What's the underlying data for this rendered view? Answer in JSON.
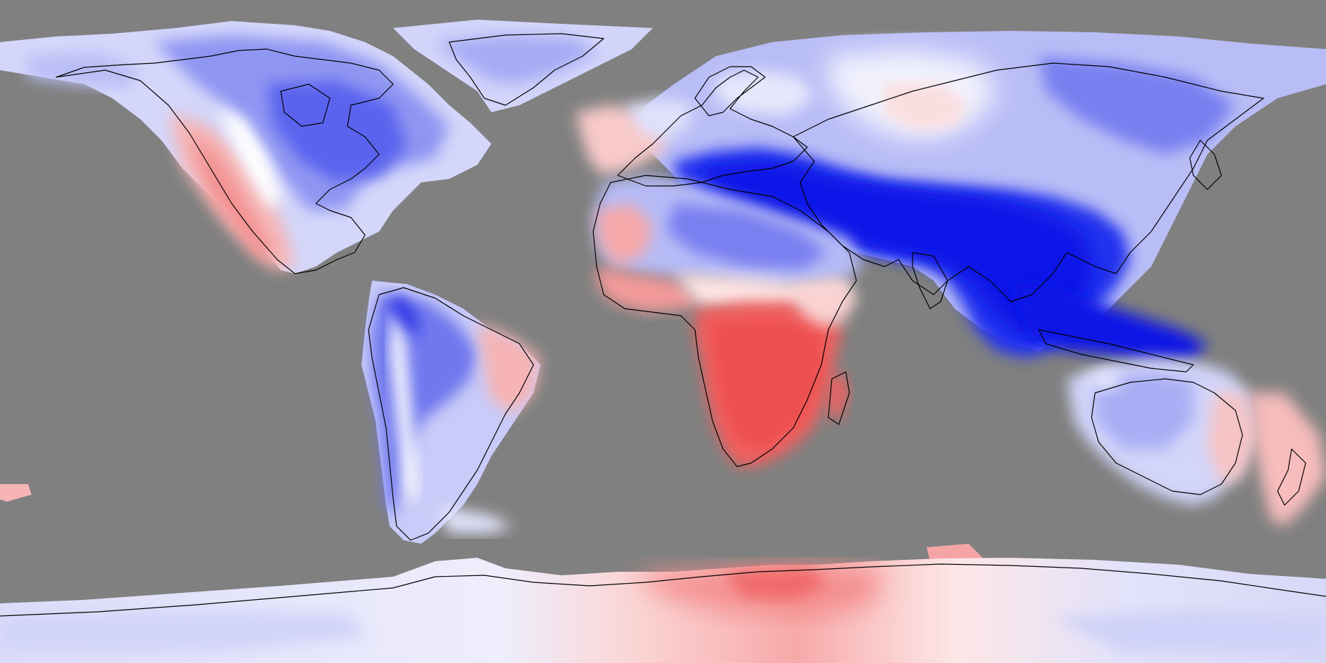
{
  "map": {
    "projection": "equirectangular",
    "ocean_color": "#808080",
    "coastline_color": "#000000",
    "color_scale": {
      "type": "diverging",
      "negative": "#0000e6",
      "neutral": "#ffffff",
      "positive": "#f03c3c"
    },
    "anomaly_regions": [
      {
        "name": "north-america",
        "polarity": "mixed"
      },
      {
        "name": "greenland",
        "polarity": "negative"
      },
      {
        "name": "south-america",
        "polarity": "negative"
      },
      {
        "name": "europe",
        "polarity": "mixed"
      },
      {
        "name": "north-africa",
        "polarity": "negative"
      },
      {
        "name": "southern-africa",
        "polarity": "positive"
      },
      {
        "name": "madagascar",
        "polarity": "positive"
      },
      {
        "name": "middle-east-south-asia",
        "polarity": "strong-negative"
      },
      {
        "name": "siberia",
        "polarity": "negative"
      },
      {
        "name": "southeast-asia-indonesia",
        "polarity": "strong-negative"
      },
      {
        "name": "australia",
        "polarity": "mixed"
      },
      {
        "name": "new-zealand",
        "polarity": "positive"
      },
      {
        "name": "antarctica",
        "polarity": "mixed"
      }
    ]
  }
}
